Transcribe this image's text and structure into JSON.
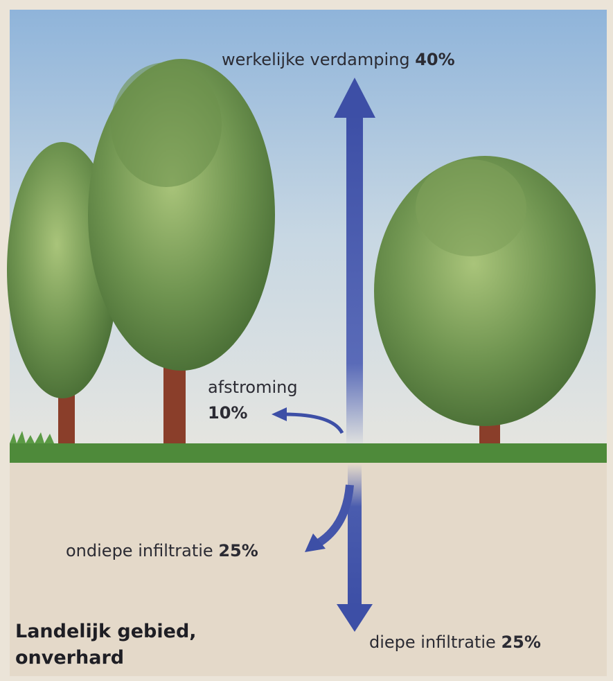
{
  "flows": [
    {
      "label": "werkelijke verdamping",
      "value": "40%"
    },
    {
      "label": "afstroming",
      "value": "10%"
    },
    {
      "label": "ondiepe infiltratie",
      "value": "25%"
    },
    {
      "label": "diepe infiltratie",
      "value": "25%"
    }
  ],
  "caption": [
    "Landelijk gebied,",
    "onverhard"
  ]
}
